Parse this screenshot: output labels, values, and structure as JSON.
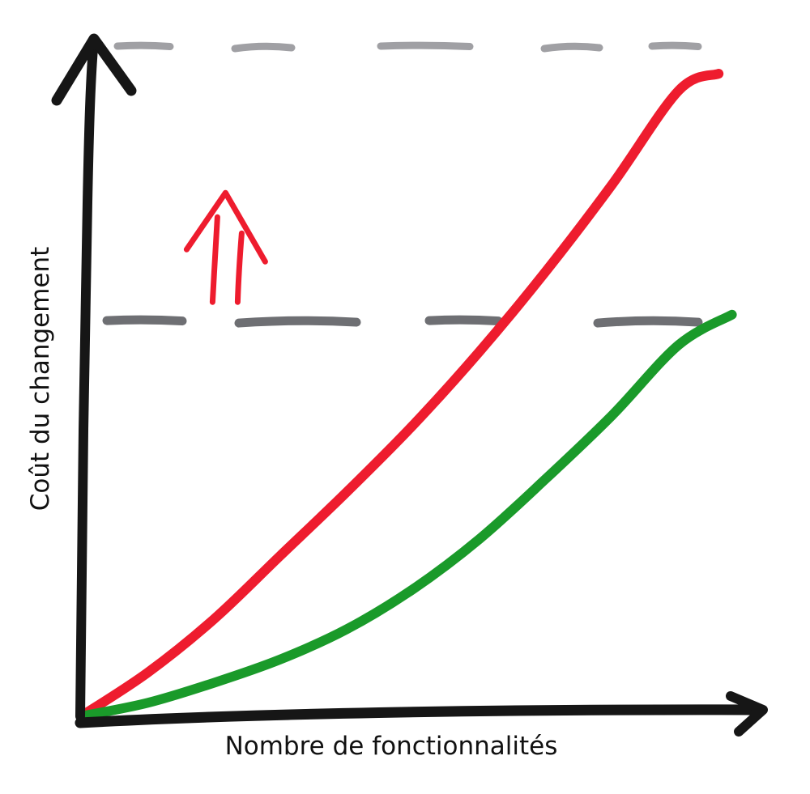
{
  "chart_data": {
    "type": "line",
    "xlabel": "Nombre de fonctionnalités",
    "ylabel": "Coût du changement",
    "xlim": [
      0,
      100
    ],
    "ylim": [
      0,
      100
    ],
    "grid": false,
    "legend": "none",
    "series": [
      {
        "color": "#ee1c2e",
        "x": [
          0,
          10,
          20,
          30,
          40,
          50,
          60,
          70,
          80,
          90,
          96
        ],
        "y": [
          0,
          6.5,
          14.5,
          24,
          33.5,
          43.5,
          54.5,
          66.5,
          79.5,
          93.5,
          96
        ]
      },
      {
        "color": "#1a9a2a",
        "x": [
          0,
          10,
          20,
          30,
          40,
          50,
          60,
          70,
          80,
          90,
          98
        ],
        "y": [
          0,
          2,
          5,
          8.5,
          13,
          19,
          26.5,
          35.5,
          45,
          55.5,
          60
        ]
      }
    ],
    "reference_lines": [
      {
        "y": 100,
        "color": "#8f8f94",
        "style": "dashed"
      },
      {
        "y": 59,
        "color": "#55565a",
        "style": "dashed"
      }
    ],
    "annotations": [
      {
        "type": "arrow",
        "direction": "up",
        "color": "#ee1c2e",
        "x": 22,
        "y": 77
      }
    ]
  }
}
